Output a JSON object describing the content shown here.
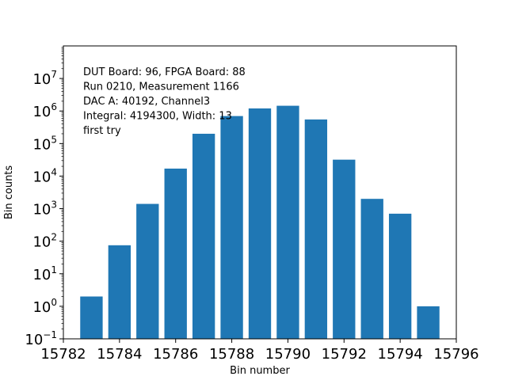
{
  "chart_data": {
    "type": "bar",
    "title": "",
    "xlabel": "Bin number",
    "ylabel": "Bin counts",
    "yscale": "log",
    "xlim": [
      15782,
      15796
    ],
    "ylim_exponent": [
      -1,
      8
    ],
    "xticks": [
      15782,
      15784,
      15786,
      15788,
      15790,
      15792,
      15794,
      15796
    ],
    "yticks": [
      {
        "exp": -1,
        "label": "10",
        "sup": "−1"
      },
      {
        "exp": 0,
        "label": "10",
        "sup": "0"
      },
      {
        "exp": 1,
        "label": "10",
        "sup": "1"
      },
      {
        "exp": 2,
        "label": "10",
        "sup": "2"
      },
      {
        "exp": 3,
        "label": "10",
        "sup": "3"
      },
      {
        "exp": 4,
        "label": "10",
        "sup": "4"
      },
      {
        "exp": 5,
        "label": "10",
        "sup": "5"
      },
      {
        "exp": 6,
        "label": "10",
        "sup": "6"
      },
      {
        "exp": 7,
        "label": "10",
        "sup": "7"
      }
    ],
    "bar_color": "#1f77b4",
    "bar_width": 0.8,
    "x": [
      15783,
      15784,
      15785,
      15786,
      15787,
      15788,
      15789,
      15790,
      15791,
      15792,
      15793,
      15794,
      15795
    ],
    "values": [
      2,
      75,
      1400,
      17000,
      200000,
      700000,
      1200000,
      1450000,
      550000,
      32000,
      2000,
      700,
      1
    ],
    "annotations": [
      "DUT Board: 96, FPGA Board: 88",
      "Run 0210, Measurement 1166",
      "DAC A: 40192, Channel3",
      "Integral: 4194300, Width: 13",
      "first try"
    ],
    "grid": false,
    "legend": "none"
  }
}
